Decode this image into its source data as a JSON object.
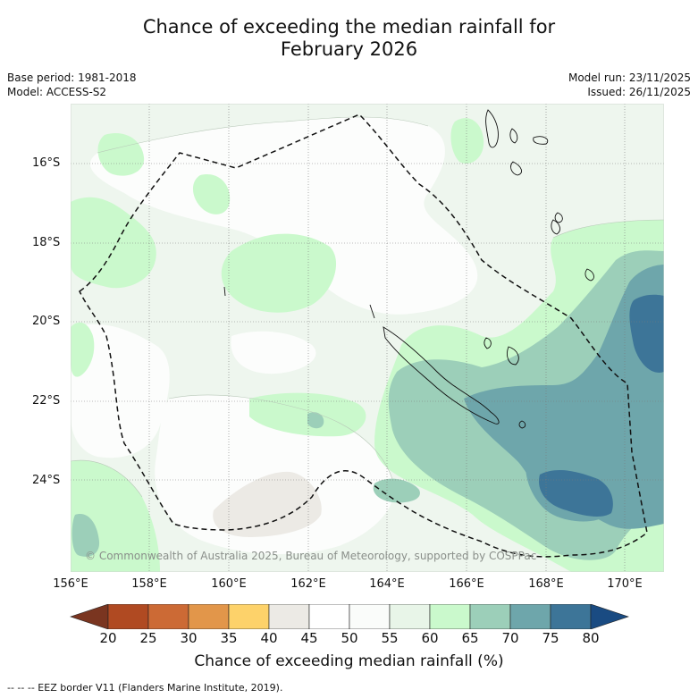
{
  "title": {
    "line1": "Chance of exceeding the median rainfall for",
    "line2": "February 2026"
  },
  "meta": {
    "base_period": "Base period: 1981-2018",
    "model": "Model: ACCESS-S2",
    "model_run": "Model run: 23/11/2025",
    "issued": "Issued: 26/11/2025"
  },
  "map": {
    "lat_labels": [
      "16°S",
      "18°S",
      "20°S",
      "22°S",
      "24°S"
    ],
    "lon_labels": [
      "156°E",
      "158°E",
      "160°E",
      "162°E",
      "164°E",
      "166°E",
      "168°E",
      "170°E"
    ],
    "copyright": "© Commonwealth of Australia 2025, Bureau of Meteorology, supported by COSPPac"
  },
  "legend": {
    "ticks": [
      "20",
      "25",
      "30",
      "35",
      "40",
      "45",
      "50",
      "55",
      "60",
      "65",
      "70",
      "75",
      "80"
    ],
    "label": "Chance of exceeding median rainfall (%)",
    "colors": [
      "#7a3520",
      "#b04a22",
      "#cc6a35",
      "#e2964a",
      "#fdd26a",
      "#eceae5",
      "#ffffff",
      "#fafcfa",
      "#e8f5e8",
      "#caf9cc",
      "#9ccfb9",
      "#6ea6ab",
      "#3d7598",
      "#1a4b82"
    ]
  },
  "footer": {
    "eez_note": "--  --  -- EEZ border V11 (Flanders Marine Institute, 2019)."
  }
}
